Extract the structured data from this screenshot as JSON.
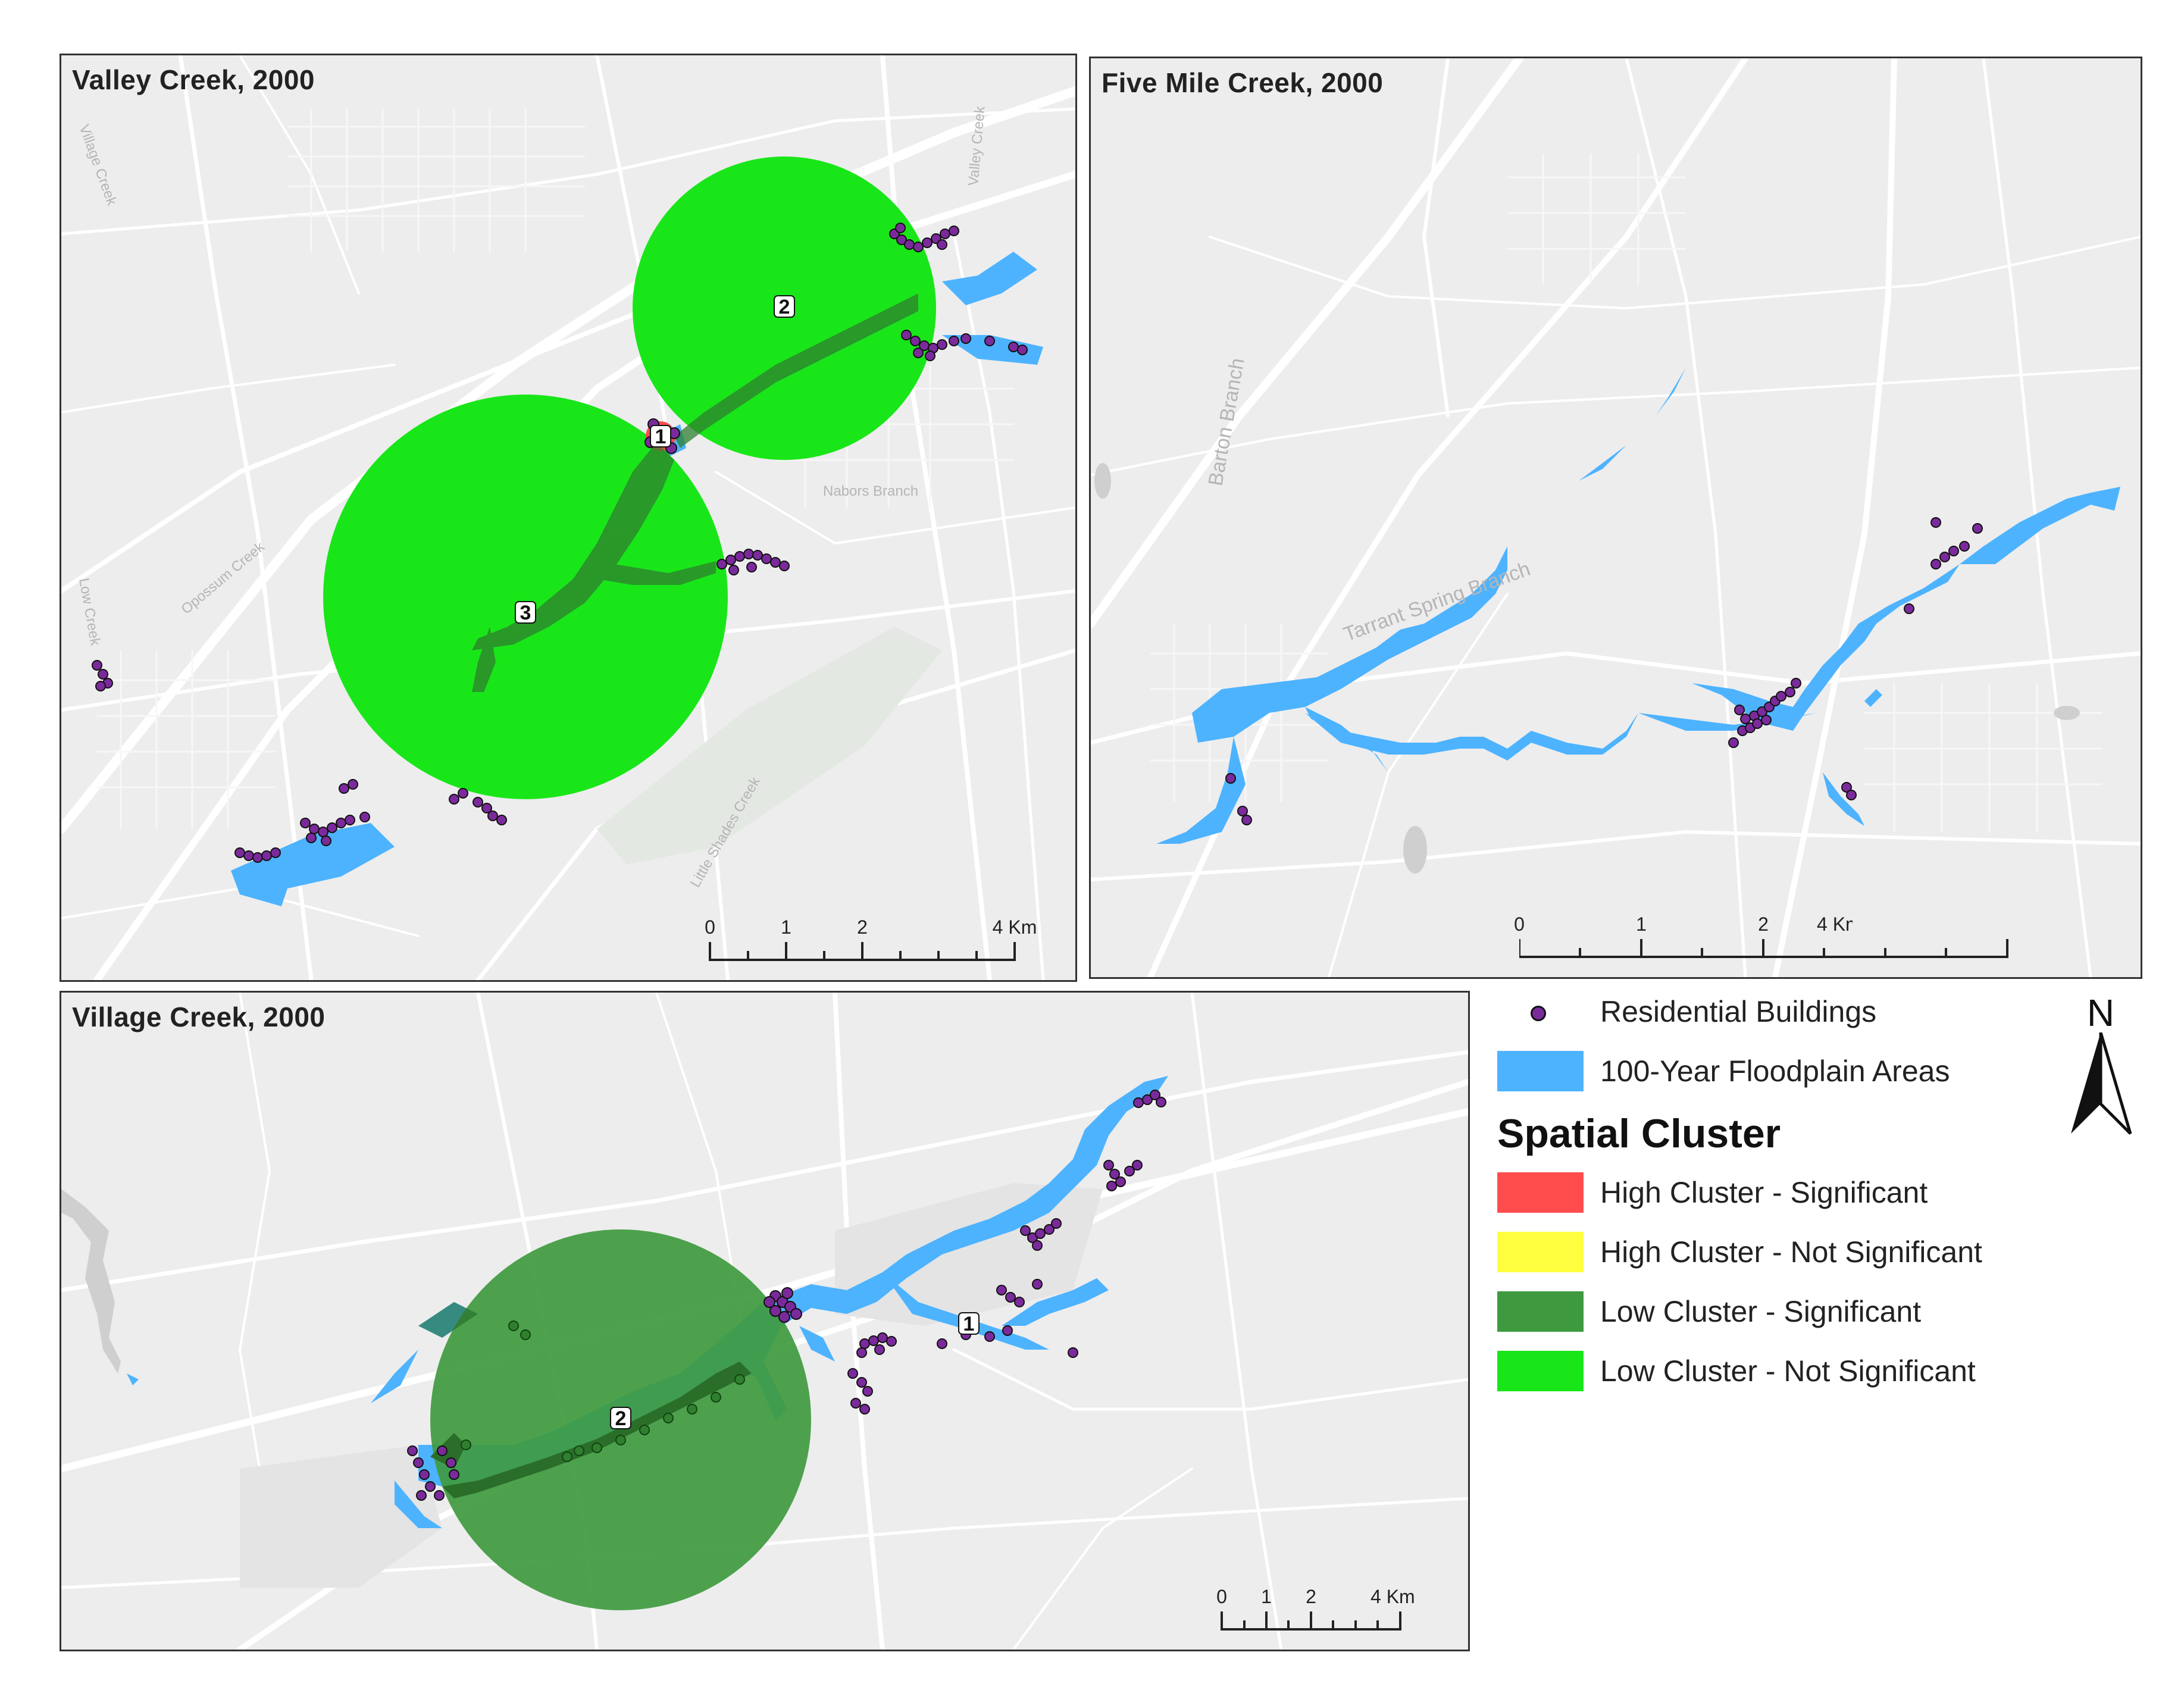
{
  "panels": {
    "valley": {
      "title": "Valley Creek, 2000",
      "clusters": [
        "1",
        "2",
        "3"
      ]
    },
    "fivemile": {
      "title": "Five Mile Creek, 2000"
    },
    "village": {
      "title": "Village Creek, 2000",
      "clusters": [
        "1",
        "2"
      ]
    }
  },
  "street_labels": {
    "valley": [
      "Opossum Creek",
      "Valley Creek",
      "Nabors Branch",
      "Little Shades Creek",
      "Low Creek",
      "Village Creek"
    ],
    "fivemile": [
      "Barton Branch",
      "Tarrant Spring Branch"
    ]
  },
  "scale_bar": {
    "ticks": [
      "0",
      "1",
      "2",
      "4 Km"
    ]
  },
  "legend": {
    "buildings": "Residential Buildings",
    "floodplain": "100-Year Floodplain Areas",
    "heading": "Spatial Cluster",
    "items": [
      {
        "label": "High Cluster - Significant",
        "color": "#ff4d4d"
      },
      {
        "label": "High Cluster - Not Significant",
        "color": "#ffff40"
      },
      {
        "label": "Low Cluster - Significant",
        "color": "#3f9a3f"
      },
      {
        "label": "Low Cluster - Not Significant",
        "color": "#19e619"
      }
    ]
  },
  "north_arrow": "N",
  "colors": {
    "map_bg": "#ededed",
    "road": "#ffffff",
    "floodplain": "#4db3ff",
    "building": "#7b2a9c",
    "high_sig": "#ff4d4d",
    "low_sig": "#3f9a3f",
    "low_notsig": "#19e619"
  }
}
